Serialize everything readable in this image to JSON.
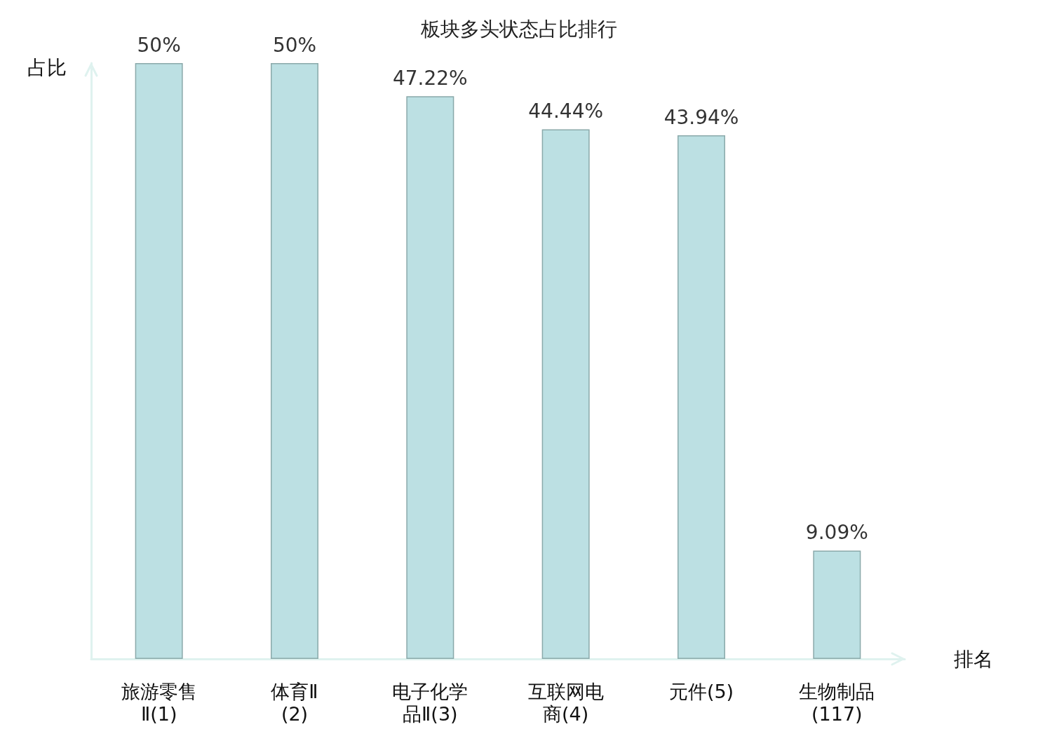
{
  "chart_data": {
    "type": "bar",
    "title": "板块多头状态占比排行",
    "xlabel": "排名",
    "ylabel": "占比",
    "categories": [
      "旅游零售Ⅱ(1)",
      "体育Ⅱ(2)",
      "电子化学品Ⅱ(3)",
      "互联网电商(4)",
      "元件(5)",
      "生物制品(117)"
    ],
    "values": [
      50,
      50,
      47.22,
      44.44,
      43.94,
      9.09
    ],
    "value_labels": [
      "50%",
      "50%",
      "47.22%",
      "44.44%",
      "43.94%",
      "9.09%"
    ],
    "color": "#bce0e3",
    "grid": false
  }
}
